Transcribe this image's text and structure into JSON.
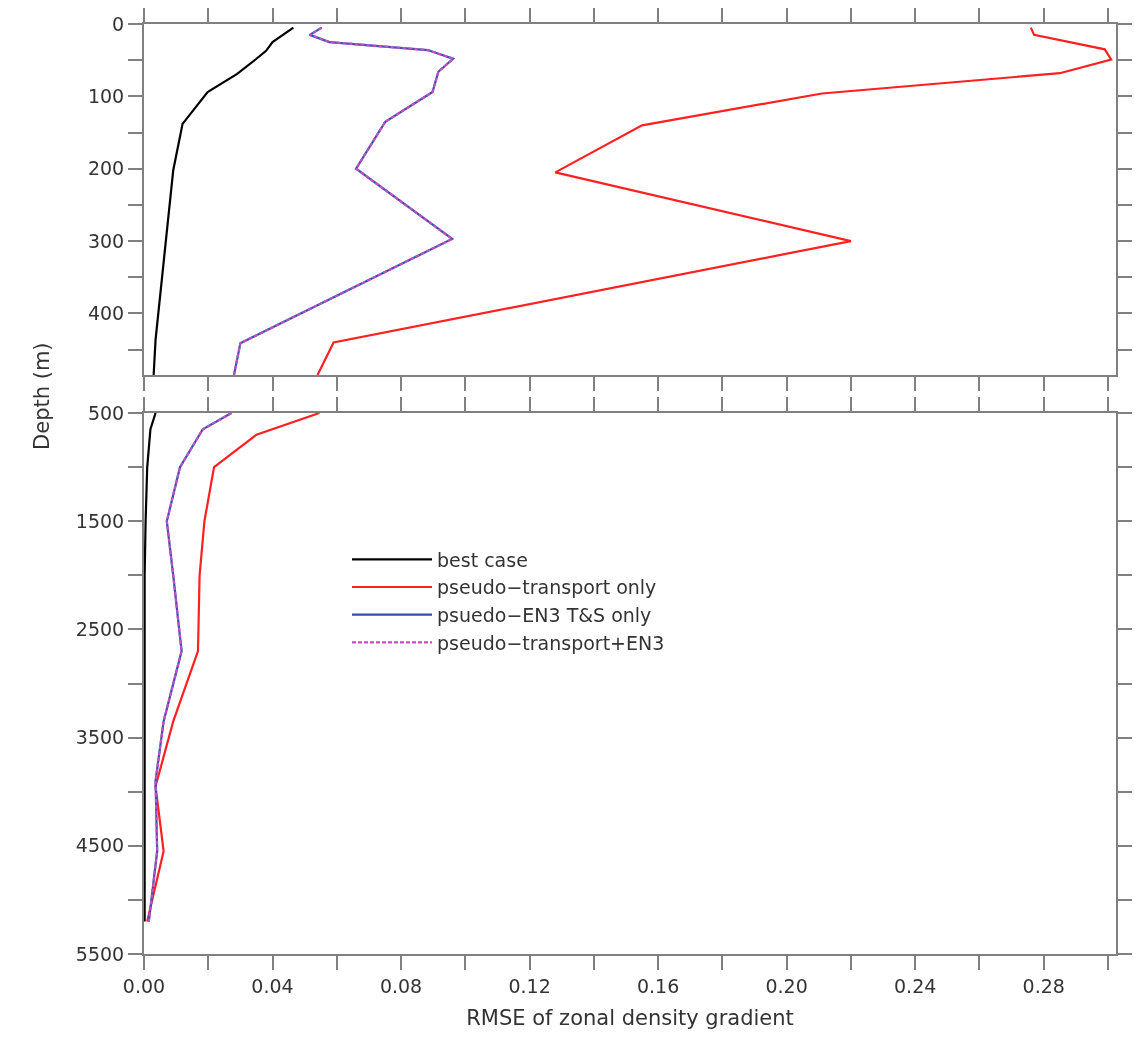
{
  "chart_data": [
    {
      "type": "line",
      "ylabel": "Depth (m)",
      "xlim": [
        0,
        0.3025
      ],
      "ylim": [
        485,
        0
      ],
      "xticks": [
        {
          "value": 0,
          "label": null
        },
        {
          "value": 0.02,
          "label": null
        },
        {
          "value": 0.04,
          "label": null
        },
        {
          "value": 0.06,
          "label": null
        },
        {
          "value": 0.08,
          "label": null
        },
        {
          "value": 0.1,
          "label": null
        },
        {
          "value": 0.12,
          "label": null
        },
        {
          "value": 0.14,
          "label": null
        },
        {
          "value": 0.16,
          "label": null
        },
        {
          "value": 0.18,
          "label": null
        },
        {
          "value": 0.2,
          "label": null
        },
        {
          "value": 0.22,
          "label": null
        },
        {
          "value": 0.24,
          "label": null
        },
        {
          "value": 0.26,
          "label": null
        },
        {
          "value": 0.28,
          "label": null
        },
        {
          "value": 0.3,
          "label": null
        }
      ],
      "yticks": [
        0,
        {
          "value": 50,
          "label": null
        },
        100,
        {
          "value": 150,
          "label": null
        },
        200,
        {
          "value": 250,
          "label": null
        },
        300,
        {
          "value": 350,
          "label": null
        },
        400,
        {
          "value": 450,
          "label": null
        }
      ],
      "tick_labels": "y",
      "marker": "none",
      "series": [
        {
          "color": "#000000",
          "line_style": "solid",
          "x": [
            0.0465,
            0.04,
            0.038,
            0.035,
            0.029,
            0.0198,
            0.012,
            0.0091,
            0.0036,
            0.003
          ],
          "values": [
            5,
            25,
            37,
            48,
            69,
            94,
            138,
            202,
            436,
            485
          ]
        },
        {
          "color": "#ff2020",
          "line_style": "solid",
          "x": [
            0.276,
            0.277,
            0.299,
            0.301,
            0.285,
            0.211,
            0.155,
            0.128,
            0.22,
            0.059,
            0.054
          ],
          "values": [
            5,
            15,
            35,
            49,
            68,
            96,
            140,
            205,
            300,
            440,
            485
          ]
        },
        {
          "color": "#3050b0",
          "line_style": "solid",
          "x": [
            0.0553,
            0.0516,
            0.0577,
            0.0883,
            0.0962,
            0.0916,
            0.0898,
            0.0751,
            0.066,
            0.0959,
            0.03,
            0.028
          ],
          "values": [
            5,
            15,
            25,
            36,
            48,
            66,
            94,
            135,
            200,
            297,
            441,
            485
          ]
        },
        {
          "color": "#c050c0",
          "line_style": "dashed",
          "x": [
            0.0553,
            0.0516,
            0.0577,
            0.0883,
            0.0962,
            0.0916,
            0.0898,
            0.0751,
            0.066,
            0.0959,
            0.03,
            0.028
          ],
          "values": [
            5,
            15,
            25,
            36,
            48,
            66,
            94,
            135,
            200,
            297,
            441,
            485
          ]
        }
      ]
    },
    {
      "type": "line",
      "xlabel": "RMSE of zonal density gradient",
      "xlim": [
        0,
        0.3025
      ],
      "ylim": [
        5500,
        500
      ],
      "xticks": [
        {
          "value": 0,
          "label": "0.00"
        },
        {
          "value": 0.02,
          "label": null
        },
        {
          "value": 0.04,
          "label": "0.04"
        },
        {
          "value": 0.06,
          "label": null
        },
        {
          "value": 0.08,
          "label": "0.08"
        },
        {
          "value": 0.1,
          "label": null
        },
        {
          "value": 0.12,
          "label": "0.12"
        },
        {
          "value": 0.14,
          "label": null
        },
        {
          "value": 0.16,
          "label": "0.16"
        },
        {
          "value": 0.18,
          "label": null
        },
        {
          "value": 0.2,
          "label": "0.20"
        },
        {
          "value": 0.22,
          "label": null
        },
        {
          "value": 0.24,
          "label": "0.24"
        },
        {
          "value": 0.26,
          "label": null
        },
        {
          "value": 0.28,
          "label": "0.28"
        },
        {
          "value": 0.3,
          "label": null
        }
      ],
      "yticks": [
        500,
        {
          "value": 1000,
          "label": null
        },
        1500,
        {
          "value": 2000,
          "label": null
        },
        2500,
        {
          "value": 3000,
          "label": null
        },
        3500,
        {
          "value": 4000,
          "label": null
        },
        4500,
        {
          "value": 5000,
          "label": null
        },
        5500
      ],
      "marker": "none",
      "legend": "top",
      "series": [
        {
          "name": "best case",
          "color": "#000000",
          "line_style": "solid",
          "x": [
            0.0036,
            0.002,
            0.001,
            0.0005,
            0.0002,
            0.0002,
            0.0002,
            0.0002,
            0.0002
          ],
          "values": [
            500,
            650,
            1000,
            1500,
            2000,
            2700,
            3350,
            3950,
            5200
          ]
        },
        {
          "name": "pseudo−transport only",
          "color": "#ff2020",
          "line_style": "solid",
          "x": [
            0.0546,
            0.035,
            0.0218,
            0.0188,
            0.0173,
            0.0168,
            0.0091,
            0.0036,
            0.0061,
            0.001
          ],
          "values": [
            500,
            700,
            1000,
            1500,
            2000,
            2700,
            3350,
            3950,
            4550,
            5200
          ]
        },
        {
          "name": "psuedo−EN3 T&S only",
          "color": "#3050b0",
          "line_style": "solid",
          "x": [
            0.0272,
            0.0183,
            0.0112,
            0.0071,
            0.0091,
            0.0117,
            0.0061,
            0.0036,
            0.0041,
            0.0015
          ],
          "values": [
            500,
            650,
            1000,
            1500,
            2000,
            2700,
            3350,
            3900,
            4550,
            5200
          ]
        },
        {
          "name": "pseudo−transport+EN3",
          "color": "#c050c0",
          "line_style": "dashed",
          "x": [
            0.0272,
            0.0183,
            0.0112,
            0.0071,
            0.0091,
            0.0117,
            0.0061,
            0.0036,
            0.0041,
            0.0015
          ],
          "values": [
            500,
            650,
            1000,
            1500,
            2000,
            2700,
            3350,
            3900,
            4550,
            5200
          ]
        }
      ]
    }
  ]
}
